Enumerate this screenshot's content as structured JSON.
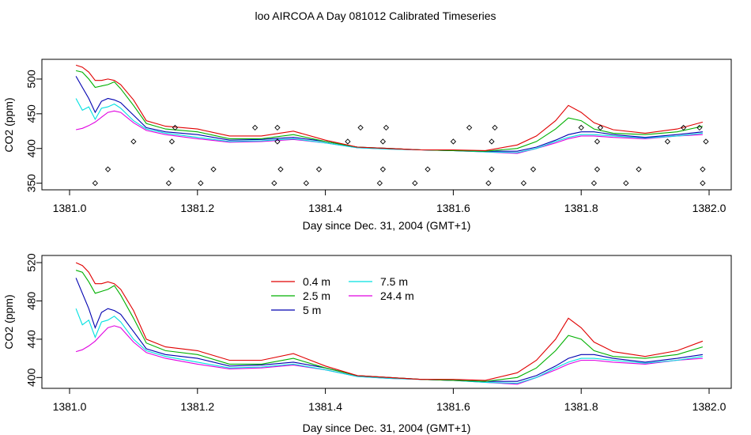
{
  "title": "loo AIRCOA A  Day 081012  Calibrated Timeseries",
  "colors": {
    "0.4 m": "#e00000",
    "2.5 m": "#00b000",
    "5 m": "#0000b0",
    "7.5 m": "#00e0e0",
    "24.4 m": "#e000e0",
    "markers": "#000000"
  },
  "chart_data": [
    {
      "type": "line",
      "xlabel": "Day since Dec. 31, 2004 (GMT+1)",
      "ylabel": "CO2 (ppm)",
      "xlim": [
        1381.0,
        1382.0
      ],
      "ylim": [
        345,
        525
      ],
      "xticks": [
        1381.0,
        1381.2,
        1381.4,
        1381.6,
        1381.8,
        1382.0
      ],
      "xtick_labels": [
        "1381.0",
        "1381.2",
        "1381.4",
        "1381.6",
        "1381.8",
        "1382.0"
      ],
      "yticks": [
        350,
        400,
        450,
        500
      ],
      "ytick_labels": [
        "350",
        "400",
        "450",
        "500"
      ],
      "grid": false,
      "series": [
        {
          "name": "0.4 m",
          "x": [
            1381.01,
            1381.02,
            1381.03,
            1381.04,
            1381.05,
            1381.06,
            1381.07,
            1381.08,
            1381.1,
            1381.12,
            1381.15,
            1381.2,
            1381.25,
            1381.3,
            1381.35,
            1381.4,
            1381.45,
            1381.5,
            1381.55,
            1381.6,
            1381.65,
            1381.7,
            1381.73,
            1381.76,
            1381.78,
            1381.8,
            1381.82,
            1381.85,
            1381.9,
            1381.95,
            1381.99
          ],
          "y": [
            520,
            517,
            510,
            498,
            498,
            500,
            498,
            492,
            470,
            440,
            432,
            428,
            418,
            418,
            425,
            412,
            402,
            400,
            398,
            398,
            397,
            405,
            418,
            440,
            462,
            452,
            437,
            427,
            422,
            428,
            438
          ]
        },
        {
          "name": "2.5 m",
          "x": [
            1381.01,
            1381.02,
            1381.03,
            1381.04,
            1381.05,
            1381.06,
            1381.07,
            1381.08,
            1381.1,
            1381.12,
            1381.15,
            1381.2,
            1381.25,
            1381.3,
            1381.35,
            1381.4,
            1381.45,
            1381.5,
            1381.55,
            1381.6,
            1381.65,
            1381.7,
            1381.73,
            1381.76,
            1381.78,
            1381.8,
            1381.82,
            1381.85,
            1381.9,
            1381.95,
            1381.99
          ],
          "y": [
            512,
            510,
            500,
            488,
            490,
            492,
            496,
            486,
            462,
            436,
            428,
            424,
            414,
            414,
            420,
            410,
            402,
            400,
            398,
            397,
            396,
            400,
            410,
            428,
            444,
            440,
            428,
            422,
            420,
            424,
            432
          ]
        },
        {
          "name": "5 m",
          "x": [
            1381.01,
            1381.02,
            1381.03,
            1381.04,
            1381.05,
            1381.06,
            1381.07,
            1381.08,
            1381.1,
            1381.12,
            1381.15,
            1381.2,
            1381.25,
            1381.3,
            1381.35,
            1381.4,
            1381.45,
            1381.5,
            1381.55,
            1381.6,
            1381.65,
            1381.7,
            1381.73,
            1381.76,
            1381.78,
            1381.8,
            1381.82,
            1381.85,
            1381.9,
            1381.95,
            1381.99
          ],
          "y": [
            504,
            488,
            472,
            452,
            468,
            472,
            470,
            466,
            448,
            430,
            424,
            420,
            412,
            413,
            416,
            410,
            402,
            400,
            398,
            397,
            396,
            396,
            402,
            412,
            420,
            424,
            424,
            420,
            416,
            420,
            424
          ]
        },
        {
          "name": "7.5 m",
          "x": [
            1381.01,
            1381.02,
            1381.03,
            1381.04,
            1381.05,
            1381.06,
            1381.07,
            1381.08,
            1381.1,
            1381.12,
            1381.15,
            1381.2,
            1381.25,
            1381.3,
            1381.35,
            1381.4,
            1381.45,
            1381.5,
            1381.55,
            1381.6,
            1381.65,
            1381.7,
            1381.73,
            1381.76,
            1381.78,
            1381.8,
            1381.82,
            1381.85,
            1381.9,
            1381.95,
            1381.99
          ],
          "y": [
            472,
            455,
            460,
            442,
            458,
            460,
            464,
            458,
            440,
            428,
            422,
            416,
            410,
            411,
            414,
            408,
            401,
            399,
            398,
            397,
            395,
            394,
            400,
            410,
            416,
            420,
            420,
            418,
            415,
            418,
            422
          ]
        },
        {
          "name": "24.4 m",
          "x": [
            1381.01,
            1381.02,
            1381.03,
            1381.04,
            1381.05,
            1381.06,
            1381.07,
            1381.08,
            1381.1,
            1381.12,
            1381.15,
            1381.2,
            1381.25,
            1381.3,
            1381.35,
            1381.4,
            1381.45,
            1381.5,
            1381.55,
            1381.6,
            1381.65,
            1381.7,
            1381.73,
            1381.76,
            1381.78,
            1381.8,
            1381.82,
            1381.85,
            1381.9,
            1381.95,
            1381.99
          ],
          "y": [
            427,
            429,
            433,
            438,
            445,
            452,
            454,
            452,
            437,
            426,
            420,
            414,
            409,
            410,
            413,
            408,
            401,
            399,
            398,
            397,
            395,
            393,
            400,
            408,
            414,
            418,
            418,
            416,
            414,
            418,
            420
          ]
        }
      ],
      "markers": {
        "x": [
          1381.04,
          1381.06,
          1381.1,
          1381.155,
          1381.16,
          1381.16,
          1381.165,
          1381.205,
          1381.225,
          1381.29,
          1381.32,
          1381.325,
          1381.325,
          1381.33,
          1381.37,
          1381.39,
          1381.435,
          1381.455,
          1381.485,
          1381.49,
          1381.49,
          1381.495,
          1381.54,
          1381.56,
          1381.6,
          1381.625,
          1381.655,
          1381.66,
          1381.66,
          1381.665,
          1381.71,
          1381.725,
          1381.8,
          1381.82,
          1381.825,
          1381.825,
          1381.83,
          1381.87,
          1381.89,
          1381.935,
          1381.96,
          1381.985,
          1381.99,
          1381.99,
          1381.995
        ],
        "y": [
          350,
          370,
          410,
          350,
          370,
          410,
          430,
          350,
          370,
          430,
          350,
          410,
          430,
          370,
          350,
          370,
          410,
          430,
          350,
          370,
          410,
          430,
          350,
          370,
          410,
          430,
          350,
          370,
          410,
          430,
          350,
          370,
          430,
          350,
          370,
          410,
          430,
          350,
          370,
          410,
          430,
          430,
          350,
          370,
          410
        ]
      }
    },
    {
      "type": "line",
      "xlabel": "Day since Dec. 31, 2004 (GMT+1)",
      "ylabel": "CO2 (ppm)",
      "xlim": [
        1381.0,
        1382.0
      ],
      "ylim": [
        392,
        525
      ],
      "xticks": [
        1381.0,
        1381.2,
        1381.4,
        1381.6,
        1381.8,
        1382.0
      ],
      "xtick_labels": [
        "1381.0",
        "1381.2",
        "1381.4",
        "1381.6",
        "1381.8",
        "1382.0"
      ],
      "yticks": [
        400,
        440,
        480,
        520
      ],
      "ytick_labels": [
        "400",
        "440",
        "480",
        "520"
      ],
      "grid": false,
      "legend": {
        "placement": "top-center",
        "entries": [
          "0.4 m",
          "2.5 m",
          "5 m",
          "7.5 m",
          "24.4 m"
        ]
      },
      "series_ref": "same as first panel"
    }
  ]
}
